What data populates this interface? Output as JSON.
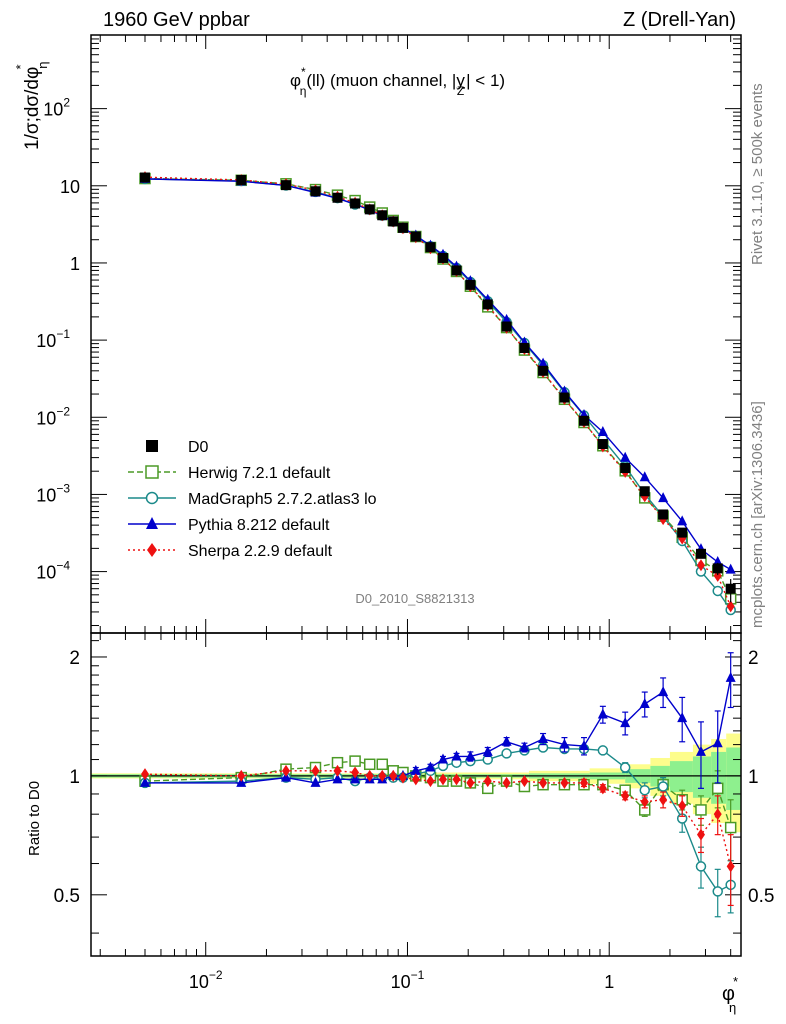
{
  "header": {
    "left": "1960 GeV ppbar",
    "right": "Z (Drell-Yan)"
  },
  "title_parts": {
    "phi": "φ",
    "star": "*",
    "eta": "η",
    "mid": "(ll) (muon channel, |",
    "y": "y",
    "sub_z": "Z",
    "end": "| < 1)"
  },
  "ylabel_parts": {
    "pre": "1/σ;dσ/dφ",
    "star": "*",
    "sub": "η"
  },
  "xlabel_parts": {
    "phi": "φ",
    "star": "*",
    "sub": "η"
  },
  "ratio_ylabel": "Ratio to D0",
  "analysis_id": "D0_2010_S8821313",
  "side_top": "Rivet 3.1.10, ≥ 500k events",
  "side_bottom": "mcplots.cern.ch [arXiv:1306.3436]",
  "legend": [
    {
      "name": "D0",
      "color": "#000000",
      "marker": "square-filled",
      "line": "none"
    },
    {
      "name": "Herwig 7.2.1 default",
      "color": "#4b9a26",
      "marker": "square-open",
      "line": "dashed"
    },
    {
      "name": "MadGraph5 2.7.2.atlas3 lo",
      "color": "#1b8a8a",
      "marker": "circle-open",
      "line": "solid"
    },
    {
      "name": "Pythia 8.212 default",
      "color": "#0000cc",
      "marker": "triangle-filled",
      "line": "solid"
    },
    {
      "name": "Sherpa 2.2.9 default",
      "color": "#ee1111",
      "marker": "diamond-filled",
      "line": "dotted"
    }
  ],
  "chart_data": {
    "type": "line",
    "log_x": true,
    "log_y": true,
    "xlim": [
      0.0027,
      4.5
    ],
    "ylim_main": [
      1.6e-05,
      900
    ],
    "ylim_ratio": [
      0.35,
      2.3
    ],
    "main_ytick_labels": [
      {
        "v": 0.0001,
        "base": "10",
        "exp": "−4"
      },
      {
        "v": 0.001,
        "base": "10",
        "exp": "−3"
      },
      {
        "v": 0.01,
        "base": "10",
        "exp": "−2"
      },
      {
        "v": 0.1,
        "base": "10",
        "exp": "−1"
      },
      {
        "v": 1,
        "base": "1",
        "exp": ""
      },
      {
        "v": 10,
        "base": "10",
        "exp": ""
      },
      {
        "v": 100,
        "base": "10",
        "exp": "2"
      }
    ],
    "ratio_ytick_labels": [
      {
        "v": 0.5,
        "text": "0.5"
      },
      {
        "v": 1,
        "text": "1"
      },
      {
        "v": 2,
        "text": "2"
      }
    ],
    "xtick_labels": [
      {
        "v": 0.01,
        "base": "10",
        "exp": "−2"
      },
      {
        "v": 0.1,
        "base": "10",
        "exp": "−1"
      },
      {
        "v": 1,
        "base": "1",
        "exp": ""
      }
    ],
    "x": [
      0.005,
      0.015,
      0.025,
      0.035,
      0.045,
      0.055,
      0.065,
      0.075,
      0.085,
      0.095,
      0.11,
      0.13,
      0.15,
      0.175,
      0.205,
      0.25,
      0.31,
      0.38,
      0.47,
      0.6,
      0.75,
      0.93,
      1.2,
      1.5,
      1.85,
      2.3,
      2.85,
      3.45,
      4.0
    ],
    "series": [
      {
        "name": "D0",
        "values": [
          12.8,
          11.9,
          10.2,
          8.5,
          7.0,
          5.9,
          4.95,
          4.15,
          3.45,
          2.85,
          2.2,
          1.6,
          1.16,
          0.8,
          0.52,
          0.29,
          0.15,
          0.079,
          0.04,
          0.018,
          0.009,
          0.0045,
          0.0022,
          0.0011,
          0.00055,
          0.00032,
          0.00017,
          0.00011,
          6e-05
        ],
        "errors": [
          0.2,
          0.2,
          0.15,
          0.12,
          0.1,
          0.08,
          0.07,
          0.06,
          0.05,
          0.04,
          0.03,
          0.02,
          0.015,
          0.01,
          0.007,
          0.004,
          0.002,
          0.001,
          0.0006,
          0.0003,
          0.00015,
          0.0001,
          6e-05,
          4e-05,
          3e-05,
          2e-05,
          2e-05,
          2e-05,
          2e-05
        ]
      },
      {
        "name": "Herwig 7.2.1 default",
        "ratio": [
          0.97,
          0.99,
          1.04,
          1.05,
          1.08,
          1.09,
          1.07,
          1.07,
          1.03,
          1.02,
          1.0,
          0.99,
          0.97,
          0.97,
          0.96,
          0.93,
          0.97,
          0.94,
          0.95,
          0.95,
          0.95,
          0.95,
          0.92,
          0.82,
          0.95,
          0.87,
          0.82,
          0.93,
          0.74
        ],
        "ratio_err": [
          0.01,
          0.01,
          0.01,
          0.01,
          0.01,
          0.01,
          0.01,
          0.01,
          0.01,
          0.01,
          0.01,
          0.01,
          0.01,
          0.01,
          0.01,
          0.01,
          0.01,
          0.01,
          0.01,
          0.01,
          0.01,
          0.01,
          0.02,
          0.03,
          0.03,
          0.05,
          0.07,
          0.1,
          0.13
        ]
      },
      {
        "name": "MadGraph5 2.7.2.atlas3 lo",
        "ratio": [
          0.96,
          0.97,
          0.99,
          0.98,
          0.99,
          0.97,
          0.99,
          0.99,
          0.99,
          0.99,
          1.01,
          1.03,
          1.06,
          1.08,
          1.09,
          1.1,
          1.14,
          1.16,
          1.18,
          1.17,
          1.17,
          1.16,
          1.05,
          0.92,
          0.94,
          0.78,
          0.59,
          0.51,
          0.53
        ],
        "ratio_err": [
          0.01,
          0.01,
          0.01,
          0.01,
          0.01,
          0.01,
          0.01,
          0.01,
          0.01,
          0.01,
          0.01,
          0.01,
          0.01,
          0.01,
          0.01,
          0.01,
          0.02,
          0.02,
          0.02,
          0.02,
          0.02,
          0.02,
          0.03,
          0.04,
          0.05,
          0.06,
          0.07,
          0.07,
          0.08
        ]
      },
      {
        "name": "Pythia 8.212 default",
        "ratio": [
          0.96,
          0.96,
          0.99,
          0.96,
          0.98,
          0.98,
          0.98,
          0.98,
          1.0,
          1.0,
          1.03,
          1.05,
          1.1,
          1.12,
          1.12,
          1.15,
          1.22,
          1.18,
          1.24,
          1.2,
          1.19,
          1.43,
          1.36,
          1.52,
          1.63,
          1.4,
          1.15,
          1.21,
          1.77
        ],
        "ratio_err": [
          0.01,
          0.01,
          0.01,
          0.01,
          0.01,
          0.01,
          0.01,
          0.01,
          0.01,
          0.01,
          0.02,
          0.02,
          0.02,
          0.02,
          0.03,
          0.03,
          0.03,
          0.03,
          0.04,
          0.05,
          0.06,
          0.07,
          0.09,
          0.11,
          0.14,
          0.18,
          0.22,
          0.25,
          0.28
        ]
      },
      {
        "name": "Sherpa 2.2.9 default",
        "ratio": [
          1.01,
          1.0,
          1.03,
          1.03,
          1.03,
          1.02,
          1.0,
          1.0,
          1.0,
          0.99,
          0.98,
          0.97,
          0.98,
          0.98,
          0.96,
          0.97,
          0.96,
          0.97,
          0.96,
          0.96,
          0.96,
          0.93,
          0.89,
          0.86,
          0.87,
          0.84,
          0.71,
          0.8,
          0.59
        ],
        "ratio_err": [
          0.01,
          0.01,
          0.01,
          0.01,
          0.01,
          0.01,
          0.01,
          0.01,
          0.01,
          0.01,
          0.01,
          0.01,
          0.01,
          0.01,
          0.01,
          0.01,
          0.01,
          0.01,
          0.01,
          0.01,
          0.02,
          0.02,
          0.02,
          0.03,
          0.04,
          0.05,
          0.07,
          0.09,
          0.12
        ]
      }
    ],
    "data_band": {
      "x_edges": [
        0.0027,
        0.1,
        0.4,
        0.8,
        1.2,
        1.6,
        2.0,
        2.6,
        3.2,
        3.8,
        4.5
      ],
      "inner": [
        0.01,
        0.01,
        0.015,
        0.02,
        0.04,
        0.06,
        0.09,
        0.12,
        0.15,
        0.18
      ],
      "outer": [
        0.015,
        0.02,
        0.03,
        0.045,
        0.07,
        0.11,
        0.15,
        0.2,
        0.24,
        0.28
      ]
    }
  }
}
